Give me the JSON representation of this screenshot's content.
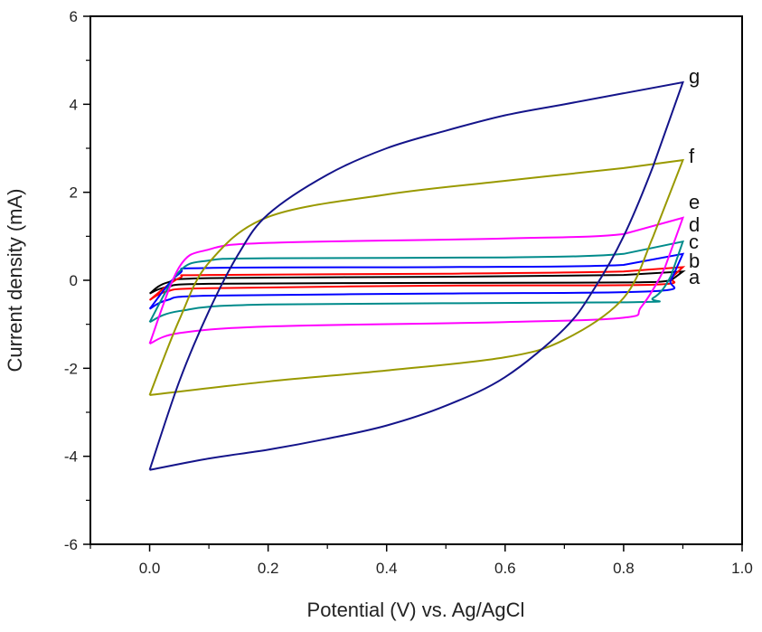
{
  "chart_data": {
    "type": "line",
    "title": "",
    "xlabel": "Potential (V) vs. Ag/AgCl",
    "ylabel": "Current density (mA)",
    "xlim": [
      -0.1,
      1.0
    ],
    "ylim": [
      -6,
      6
    ],
    "xticks": [
      "0.0",
      "0.2",
      "0.4",
      "0.6",
      "0.8",
      "1.0"
    ],
    "xtick_values": [
      0.0,
      0.2,
      0.4,
      0.6,
      0.8,
      1.0
    ],
    "yticks": [
      "-6",
      "-4",
      "-2",
      "0",
      "2",
      "4",
      "6"
    ],
    "ytick_values": [
      -6,
      -4,
      -2,
      0,
      2,
      4,
      6
    ],
    "grid": false,
    "legend": "curve labels at right end",
    "series": [
      {
        "name": "a",
        "color": "#000000",
        "forward": [
          [
            0,
            -0.3
          ],
          [
            0.03,
            -0.05
          ],
          [
            0.1,
            0.05
          ],
          [
            0.5,
            0.08
          ],
          [
            0.8,
            0.12
          ],
          [
            0.9,
            0.2
          ]
        ],
        "reverse": [
          [
            0.9,
            0.2
          ],
          [
            0.88,
            0.0
          ],
          [
            0.8,
            -0.05
          ],
          [
            0.5,
            -0.06
          ],
          [
            0.1,
            -0.08
          ],
          [
            0.03,
            -0.15
          ],
          [
            0,
            -0.3
          ]
        ]
      },
      {
        "name": "b",
        "color": "#ff0000",
        "forward": [
          [
            0,
            -0.45
          ],
          [
            0.05,
            0.05
          ],
          [
            0.1,
            0.12
          ],
          [
            0.5,
            0.15
          ],
          [
            0.8,
            0.2
          ],
          [
            0.9,
            0.3
          ]
        ],
        "reverse": [
          [
            0.9,
            0.3
          ],
          [
            0.88,
            0.05
          ],
          [
            0.85,
            -0.1
          ],
          [
            0.5,
            -0.12
          ],
          [
            0.1,
            -0.18
          ],
          [
            0.03,
            -0.25
          ],
          [
            0,
            -0.45
          ]
        ]
      },
      {
        "name": "c",
        "color": "#0000ff",
        "forward": [
          [
            0,
            -0.65
          ],
          [
            0.05,
            0.15
          ],
          [
            0.1,
            0.28
          ],
          [
            0.5,
            0.3
          ],
          [
            0.8,
            0.35
          ],
          [
            0.9,
            0.6
          ]
        ],
        "reverse": [
          [
            0.9,
            0.6
          ],
          [
            0.88,
            0.0
          ],
          [
            0.85,
            -0.25
          ],
          [
            0.5,
            -0.3
          ],
          [
            0.1,
            -0.35
          ],
          [
            0.03,
            -0.45
          ],
          [
            0,
            -0.65
          ]
        ]
      },
      {
        "name": "d",
        "color": "#008b8b",
        "forward": [
          [
            0,
            -0.95
          ],
          [
            0.05,
            0.2
          ],
          [
            0.1,
            0.45
          ],
          [
            0.2,
            0.5
          ],
          [
            0.6,
            0.52
          ],
          [
            0.8,
            0.6
          ],
          [
            0.9,
            0.88
          ]
        ],
        "reverse": [
          [
            0.9,
            0.88
          ],
          [
            0.88,
            0.1
          ],
          [
            0.85,
            -0.4
          ],
          [
            0.8,
            -0.5
          ],
          [
            0.2,
            -0.55
          ],
          [
            0.05,
            -0.7
          ],
          [
            0,
            -0.95
          ]
        ]
      },
      {
        "name": "e",
        "color": "#ff00ff",
        "forward": [
          [
            0,
            -1.44
          ],
          [
            0.05,
            0.3
          ],
          [
            0.1,
            0.7
          ],
          [
            0.2,
            0.85
          ],
          [
            0.6,
            0.95
          ],
          [
            0.8,
            1.05
          ],
          [
            0.9,
            1.42
          ]
        ],
        "reverse": [
          [
            0.9,
            1.42
          ],
          [
            0.87,
            0.3
          ],
          [
            0.83,
            -0.6
          ],
          [
            0.8,
            -0.85
          ],
          [
            0.6,
            -0.95
          ],
          [
            0.2,
            -1.05
          ],
          [
            0.05,
            -1.2
          ],
          [
            0,
            -1.44
          ]
        ]
      },
      {
        "name": "f",
        "color": "#999900",
        "forward": [
          [
            0,
            -2.61
          ],
          [
            0.05,
            -0.9
          ],
          [
            0.1,
            0.4
          ],
          [
            0.2,
            1.44
          ],
          [
            0.4,
            1.95
          ],
          [
            0.6,
            2.26
          ],
          [
            0.8,
            2.55
          ],
          [
            0.9,
            2.73
          ]
        ],
        "reverse": [
          [
            0.9,
            2.73
          ],
          [
            0.85,
            1.0
          ],
          [
            0.8,
            -0.4
          ],
          [
            0.7,
            -1.35
          ],
          [
            0.6,
            -1.75
          ],
          [
            0.4,
            -2.05
          ],
          [
            0.2,
            -2.3
          ],
          [
            0,
            -2.61
          ]
        ]
      },
      {
        "name": "g",
        "color": "#14148a",
        "forward": [
          [
            0,
            -4.31
          ],
          [
            0.05,
            -2.3
          ],
          [
            0.1,
            -0.7
          ],
          [
            0.15,
            0.6
          ],
          [
            0.2,
            1.5
          ],
          [
            0.3,
            2.4
          ],
          [
            0.4,
            3.0
          ],
          [
            0.5,
            3.4
          ],
          [
            0.6,
            3.75
          ],
          [
            0.7,
            4.0
          ],
          [
            0.8,
            4.25
          ],
          [
            0.9,
            4.5
          ]
        ],
        "reverse": [
          [
            0.9,
            4.5
          ],
          [
            0.85,
            2.6
          ],
          [
            0.8,
            1.0
          ],
          [
            0.75,
            -0.2
          ],
          [
            0.7,
            -1.1
          ],
          [
            0.6,
            -2.2
          ],
          [
            0.5,
            -2.85
          ],
          [
            0.4,
            -3.3
          ],
          [
            0.3,
            -3.6
          ],
          [
            0.2,
            -3.85
          ],
          [
            0.1,
            -4.05
          ],
          [
            0,
            -4.31
          ]
        ]
      }
    ]
  }
}
